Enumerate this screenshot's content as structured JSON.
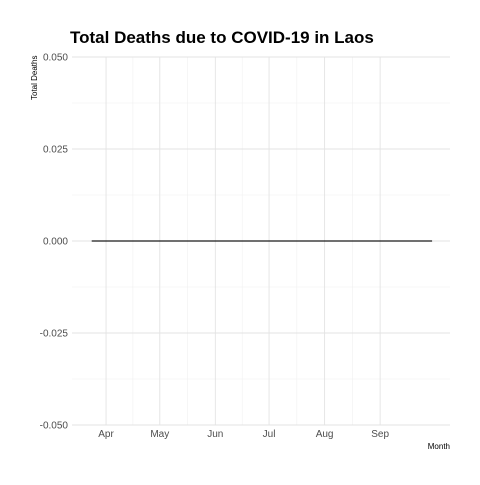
{
  "chart_data": {
    "type": "line",
    "title": "Total Deaths due to COVID-19 in Laos",
    "xlabel": "Month",
    "ylabel": "Total Deaths",
    "x_ticks": [
      "2020-04-01",
      "2020-05-01",
      "2020-06-01",
      "2020-07-01",
      "2020-08-01",
      "2020-09-01"
    ],
    "x_tick_labels": [
      "Apr",
      "May",
      "Jun",
      "Jul",
      "Aug",
      "Sep"
    ],
    "xlim": [
      "2020-03-13",
      "2020-10-10"
    ],
    "ylim": [
      -0.05,
      0.05
    ],
    "y_ticks": [
      -0.05,
      -0.025,
      0,
      0.025,
      0.05
    ],
    "y_tick_labels": [
      "-0.050",
      "-0.025",
      "0.000",
      "0.025",
      "0.050"
    ],
    "grid": true,
    "legend": "none",
    "series": [
      {
        "x": [
          "2020-03-24",
          "2020-09-30"
        ],
        "values": [
          0,
          0
        ],
        "color": "#1a1a1a"
      }
    ]
  },
  "colors": {
    "grid_major": "#e3e3e3",
    "grid_minor": "#f0f0f0"
  }
}
